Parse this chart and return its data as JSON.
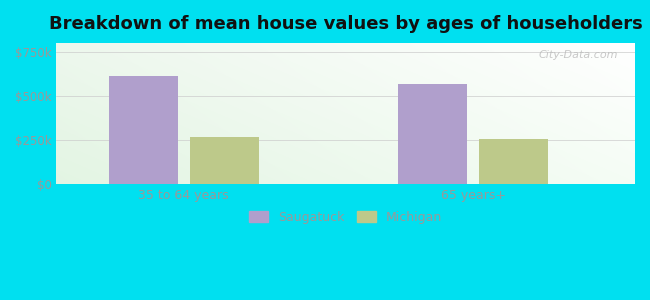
{
  "title": "Breakdown of mean house values by ages of householders",
  "categories": [
    "35 to 64 years",
    "65 years+"
  ],
  "saugatuck_values": [
    610000,
    565000
  ],
  "michigan_values": [
    268000,
    253000
  ],
  "saugatuck_color": "#b09fcc",
  "michigan_color": "#bdc98a",
  "yticks": [
    0,
    250000,
    500000,
    750000
  ],
  "ytick_labels": [
    "$0",
    "$250k",
    "$500k",
    "$750k"
  ],
  "ylim": [
    0,
    800000
  ],
  "background_outer": "#00e0f0",
  "bar_width": 0.12,
  "group_positions": [
    0.22,
    0.72
  ],
  "bar_gap": 0.02,
  "legend_labels": [
    "Saugatuck",
    "Michigan"
  ],
  "title_fontsize": 13,
  "tick_color": "#999999",
  "watermark": "City-Data.com",
  "xlim": [
    0,
    1
  ]
}
